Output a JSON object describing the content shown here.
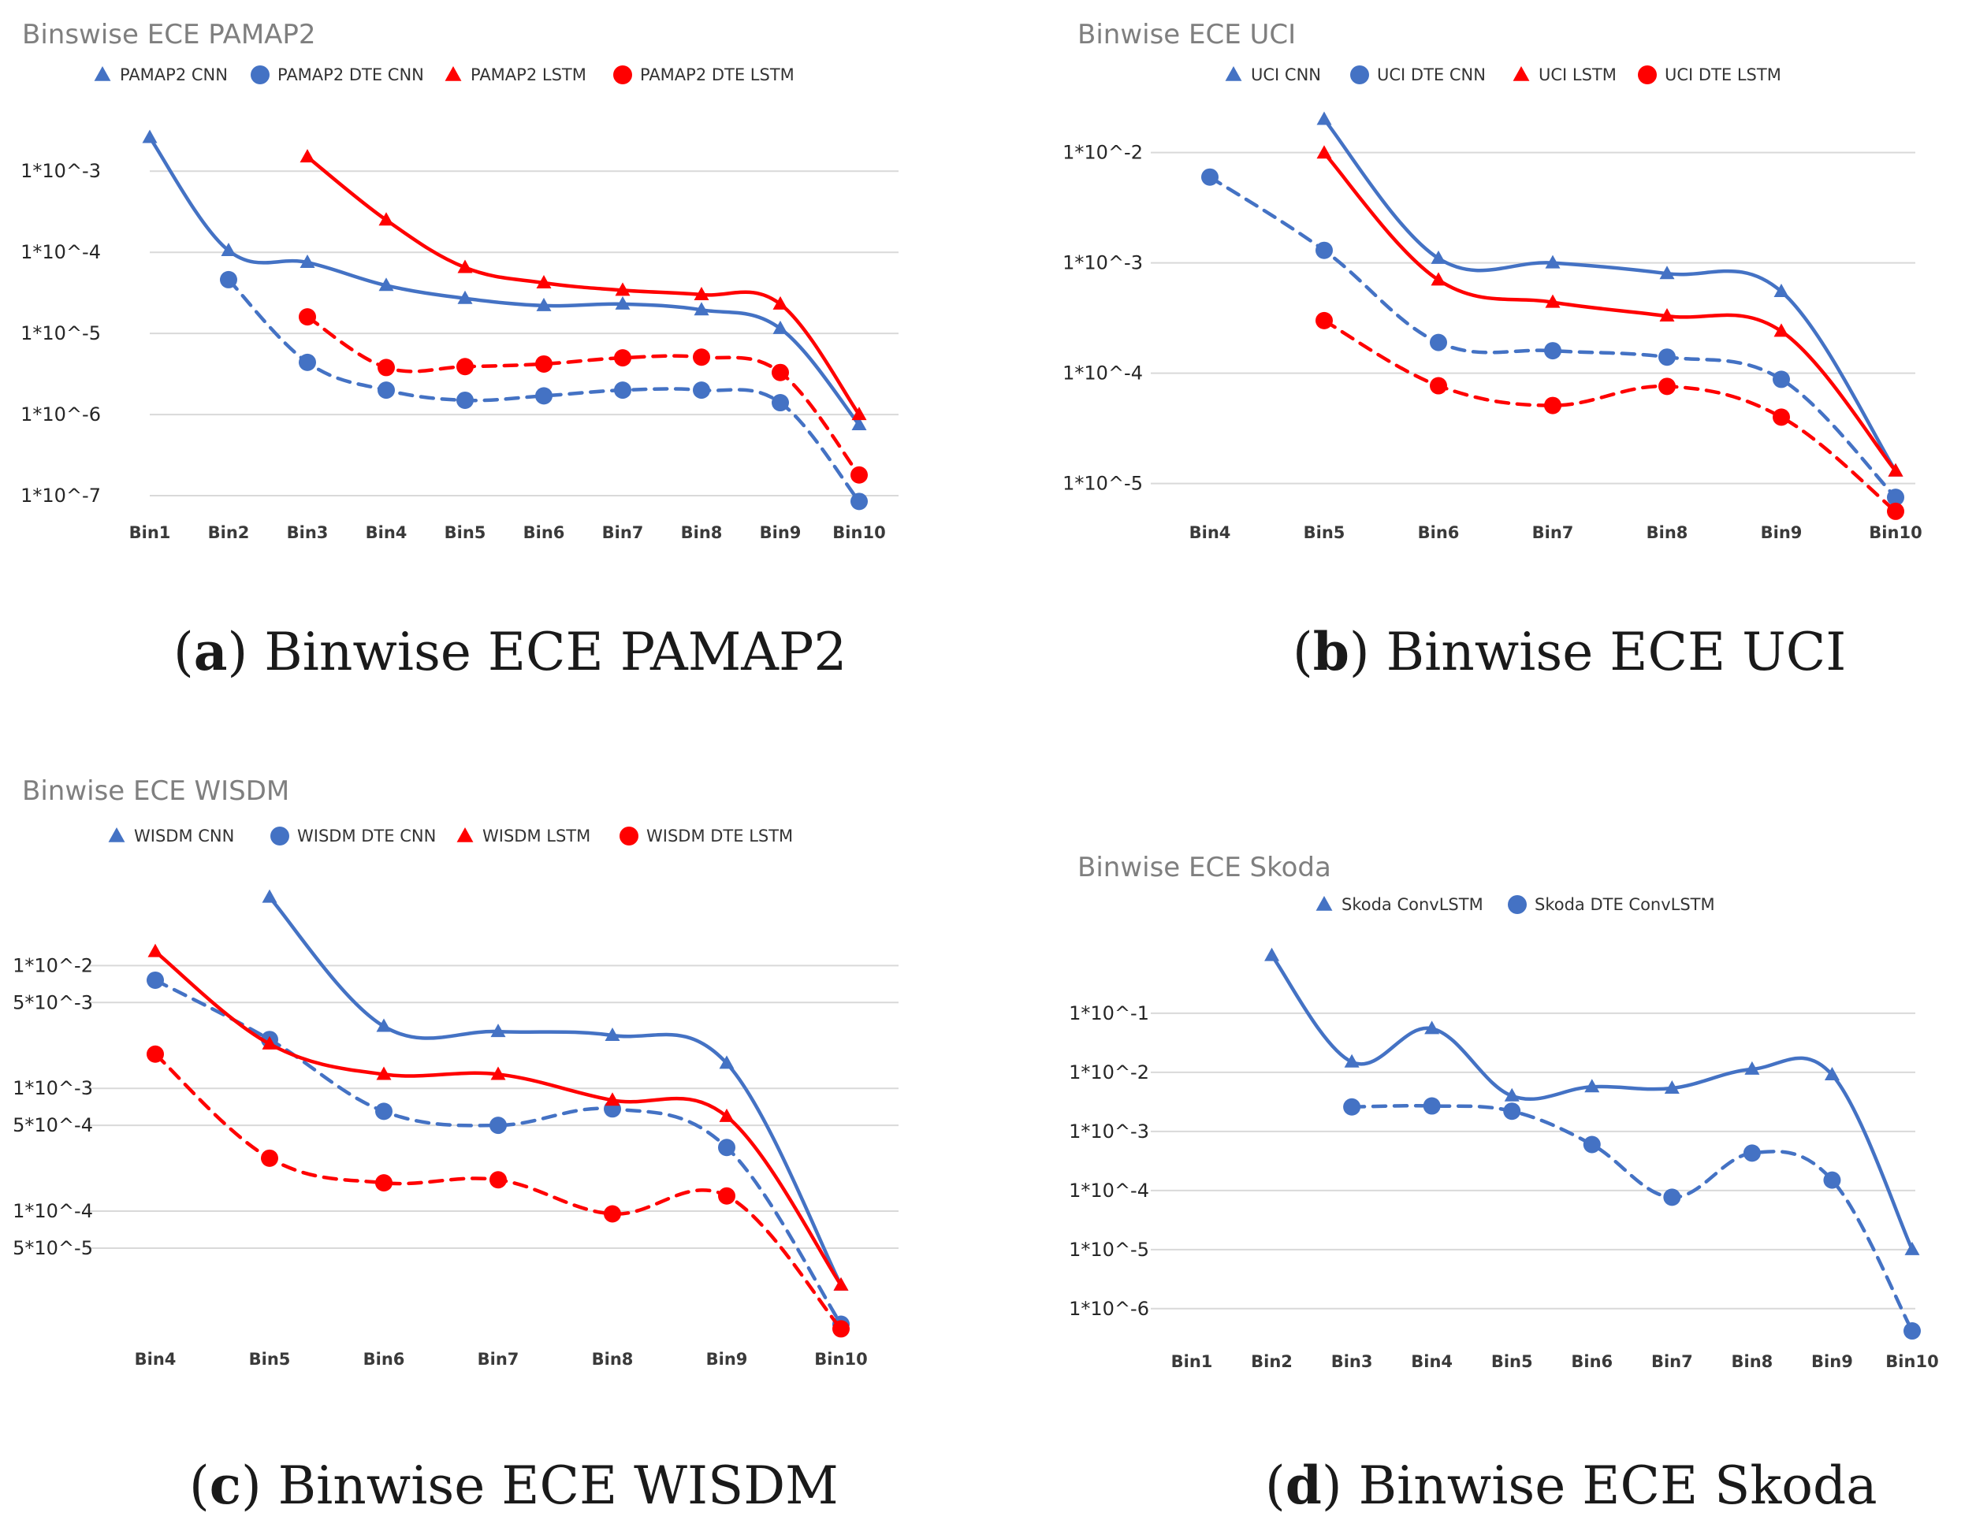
{
  "chart_data": [
    {
      "type": "line",
      "title": "Binswise ECE PAMAP2",
      "caption": {
        "label": "a",
        "text": "Binwise ECE PAMAP2"
      },
      "xlabel": "",
      "ylabel": "",
      "yscale": "log",
      "ylim": [
        7e-08,
        0.0045
      ],
      "categories": [
        "Bin1",
        "Bin2",
        "Bin3",
        "Bin4",
        "Bin5",
        "Bin6",
        "Bin7",
        "Bin8",
        "Bin9",
        "Bin10"
      ],
      "y_ticks": [
        {
          "label": "1*10^-3",
          "value": 0.001
        },
        {
          "label": "1*10^-4",
          "value": 0.0001
        },
        {
          "label": "1*10^-5",
          "value": 1e-05
        },
        {
          "label": "1*10^-6",
          "value": 1e-06
        },
        {
          "label": "1*10^-7",
          "value": 1e-07
        }
      ],
      "series": [
        {
          "name": "PAMAP2 CNN",
          "color": "#4472C4",
          "marker": "triangle",
          "dash": false,
          "values": [
            0.0026,
            0.000105,
            7.5e-05,
            3.9e-05,
            2.7e-05,
            2.2e-05,
            2.3e-05,
            1.95e-05,
            1.15e-05,
            7.5e-07
          ]
        },
        {
          "name": "PAMAP2 DTE CNN",
          "color": "#4472C4",
          "marker": "circle",
          "dash": true,
          "values": [
            null,
            4.6e-05,
            4.4e-06,
            2e-06,
            1.5e-06,
            1.7e-06,
            2e-06,
            2e-06,
            1.4e-06,
            8.5e-08
          ]
        },
        {
          "name": "PAMAP2 LSTM",
          "color": "#FF0000",
          "marker": "triangle",
          "dash": false,
          "values": [
            null,
            null,
            0.0015,
            0.00025,
            6.5e-05,
            4.2e-05,
            3.4e-05,
            3e-05,
            2.3e-05,
            1e-06
          ]
        },
        {
          "name": "PAMAP2 DTE LSTM",
          "color": "#FF0000",
          "marker": "circle",
          "dash": true,
          "values": [
            null,
            null,
            1.6e-05,
            3.8e-06,
            3.9e-06,
            4.2e-06,
            5e-06,
            5.1e-06,
            3.3e-06,
            1.8e-07
          ]
        }
      ]
    },
    {
      "type": "line",
      "title": "Binwise ECE UCI",
      "caption": {
        "label": "b",
        "text": "Binwise ECE UCI"
      },
      "xlabel": "",
      "ylabel": "",
      "yscale": "log",
      "ylim": [
        5.5e-06,
        0.0205
      ],
      "categories": [
        "Bin4",
        "Bin5",
        "Bin6",
        "Bin7",
        "Bin8",
        "Bin9",
        "Bin10"
      ],
      "y_ticks": [
        {
          "label": "1*10^-2",
          "value": 0.01
        },
        {
          "label": "1*10^-3",
          "value": 0.001
        },
        {
          "label": "1*10^-4",
          "value": 0.0001
        },
        {
          "label": "1*10^-5",
          "value": 1e-05
        }
      ],
      "series": [
        {
          "name": "UCI CNN",
          "color": "#4472C4",
          "marker": "triangle",
          "dash": false,
          "values": [
            null,
            0.02,
            0.0011,
            0.001,
            0.0008,
            0.00055,
            1.3e-05
          ]
        },
        {
          "name": "UCI DTE CNN",
          "color": "#4472C4",
          "marker": "circle",
          "dash": true,
          "values": [
            0.006,
            0.0013,
            0.00019,
            0.00016,
            0.00014,
            8.8e-05,
            7.5e-06
          ]
        },
        {
          "name": "UCI LSTM",
          "color": "#FF0000",
          "marker": "triangle",
          "dash": false,
          "values": [
            null,
            0.0099,
            0.0007,
            0.00044,
            0.00033,
            0.00024,
            1.3e-05
          ]
        },
        {
          "name": "UCI DTE LSTM",
          "color": "#FF0000",
          "marker": "circle",
          "dash": true,
          "values": [
            null,
            0.0003,
            7.7e-05,
            5.1e-05,
            7.6e-05,
            4e-05,
            5.6e-06
          ]
        }
      ]
    },
    {
      "type": "line",
      "title": "Binwise ECE WISDM",
      "caption": {
        "label": "c",
        "text": "Binwise ECE WISDM"
      },
      "xlabel": "",
      "ylabel": "",
      "yscale": "log",
      "ylim": [
        9e-06,
        0.055
      ],
      "categories": [
        "Bin4",
        "Bin5",
        "Bin6",
        "Bin7",
        "Bin8",
        "Bin9",
        "Bin10"
      ],
      "y_ticks": [
        {
          "label": "1*10^-2",
          "value": 0.01
        },
        {
          "label": "5*10^-3",
          "value": 0.005
        },
        {
          "label": "1*10^-3",
          "value": 0.001
        },
        {
          "label": "5*10^-4",
          "value": 0.0005
        },
        {
          "label": "1*10^-4",
          "value": 0.0001
        },
        {
          "label": "5*10^-5",
          "value": 5e-05
        }
      ],
      "series": [
        {
          "name": "WISDM CNN",
          "color": "#4472C4",
          "marker": "triangle",
          "dash": false,
          "values": [
            null,
            0.036,
            0.0032,
            0.0029,
            0.0027,
            0.0016,
            2.5e-05
          ]
        },
        {
          "name": "WISDM DTE CNN",
          "color": "#4472C4",
          "marker": "circle",
          "dash": true,
          "values": [
            0.0076,
            0.0025,
            0.00065,
            0.0005,
            0.00068,
            0.00033,
            1.2e-05
          ]
        },
        {
          "name": "WISDM LSTM",
          "color": "#FF0000",
          "marker": "triangle",
          "dash": false,
          "values": [
            0.013,
            0.0023,
            0.0013,
            0.0013,
            0.0008,
            0.00059,
            2.5e-05
          ]
        },
        {
          "name": "WISDM DTE LSTM",
          "color": "#FF0000",
          "marker": "circle",
          "dash": true,
          "values": [
            0.0019,
            0.00027,
            0.00017,
            0.00018,
            9.5e-05,
            0.000133,
            1.1e-05
          ]
        }
      ]
    },
    {
      "type": "line",
      "title": "Binwise ECE Skoda",
      "caption": {
        "label": "d",
        "text": "Binwise ECE Skoda"
      },
      "xlabel": "",
      "ylabel": "",
      "yscale": "log",
      "ylim": [
        3e-07,
        1.4
      ],
      "categories": [
        "Bin1",
        "Bin2",
        "Bin3",
        "Bin4",
        "Bin5",
        "Bin6",
        "Bin7",
        "Bin8",
        "Bin9",
        "Bin10"
      ],
      "y_ticks": [
        {
          "label": "1*10^-1",
          "value": 0.1
        },
        {
          "label": "1*10^-2",
          "value": 0.01
        },
        {
          "label": "1*10^-3",
          "value": 0.001
        },
        {
          "label": "1*10^-4",
          "value": 0.0001
        },
        {
          "label": "1*10^-5",
          "value": 1e-05
        },
        {
          "label": "1*10^-6",
          "value": 1e-06
        }
      ],
      "series": [
        {
          "name": "Skoda ConvLSTM",
          "color": "#4472C4",
          "marker": "triangle",
          "dash": false,
          "values": [
            null,
            0.95,
            0.015,
            0.055,
            0.004,
            0.0057,
            0.0054,
            0.0113,
            0.0091,
            1e-05
          ]
        },
        {
          "name": "Skoda DTE ConvLSTM",
          "color": "#4472C4",
          "marker": "circle",
          "dash": true,
          "value_note": "",
          "values": [
            null,
            null,
            0.0026,
            0.0027,
            0.0022,
            0.0006,
            7.7e-05,
            0.00043,
            0.00015,
            4.2e-07
          ]
        }
      ]
    }
  ]
}
